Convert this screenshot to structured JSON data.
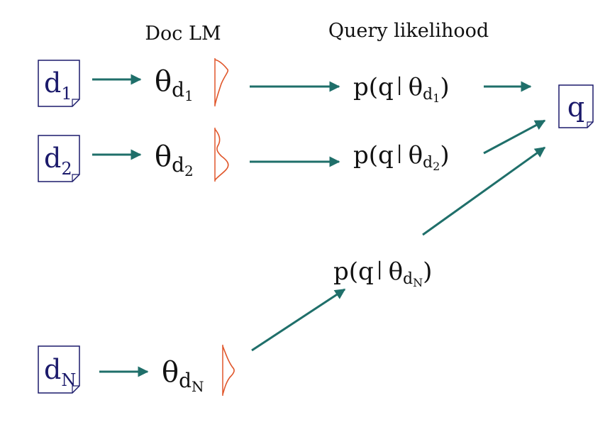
{
  "headers": {
    "doc_lm": "Doc LM",
    "query_likelihood": "Query likelihood"
  },
  "documents": [
    {
      "base": "d",
      "sub": "1"
    },
    {
      "base": "d",
      "sub": "2"
    },
    {
      "base": "d",
      "sub": "N"
    }
  ],
  "models": [
    {
      "symbol": "θ",
      "sub1": "d",
      "sub2": "1"
    },
    {
      "symbol": "θ",
      "sub1": "d",
      "sub2": "2"
    },
    {
      "symbol": "θ",
      "sub1": "d",
      "sub2": "N"
    }
  ],
  "likelihoods": [
    {
      "prefix": "p(q",
      "bar": "|",
      "theta": "θ",
      "sub1": "d",
      "sub2": "1",
      "close": ")"
    },
    {
      "prefix": "p(q",
      "bar": "|",
      "theta": "θ",
      "sub1": "d",
      "sub2": "2",
      "close": ")"
    },
    {
      "prefix": "p(q",
      "bar": "|",
      "theta": "θ",
      "sub1": "d",
      "sub2": "N",
      "close": ")"
    }
  ],
  "query": {
    "label": "q"
  },
  "colors": {
    "arrow": "#1f6f6a",
    "curve": "#e0562a",
    "doc_text": "#1b1a6b",
    "box_border": "#1b1a6b"
  }
}
